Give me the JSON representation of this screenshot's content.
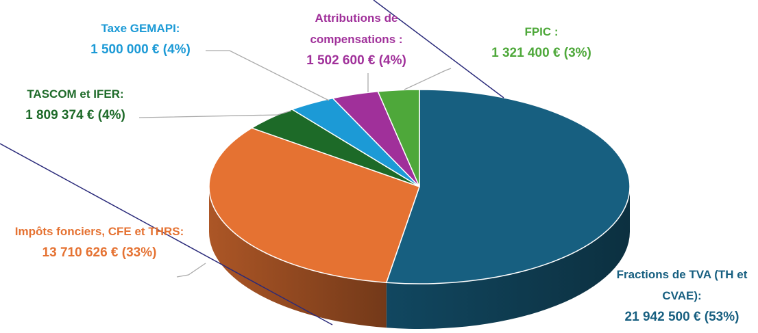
{
  "chart_data": {
    "type": "pie",
    "categories": [
      "Fractions de TVA (TH et CVAE):",
      "Impôts fonciers, CFE et THRS:",
      "TASCOM et IFER:",
      "Taxe GEMAPI:",
      "Attributions de compensations :",
      "FPIC :"
    ],
    "values": [
      21942500,
      13710626,
      1809374,
      1500000,
      1502600,
      1321400
    ],
    "value_labels": [
      "21 942 500 € (53%)",
      "13 710 626 € (33%)",
      "1 809 374 € (4%)",
      "1 500 000 € (4%)",
      "1 502 600 € (4%)",
      "1 321 400 € (3%)"
    ],
    "colors": [
      "#175f80",
      "#e57232",
      "#1d6a28",
      "#1c9ad6",
      "#a0309a",
      "#4ea83a"
    ]
  }
}
